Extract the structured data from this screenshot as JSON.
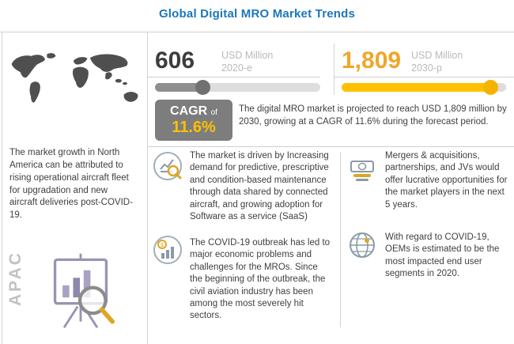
{
  "title": "Global Digital MRO Market Trends",
  "left_panel": {
    "text": "The market growth in North America can be attributed to rising operational aircraft fleet for upgradation and new aircraft deliveries post-COVID-19.",
    "region_label": "APAC"
  },
  "market_2020": {
    "value": "606",
    "unit": "USD Million",
    "period": "2020-e"
  },
  "market_2030": {
    "value": "1,809",
    "unit": "USD Million",
    "period": "2030-p"
  },
  "cagr": {
    "label": "CAGR",
    "connector": "of",
    "value": "11.6%"
  },
  "projection_text": "The digital MRO market is projected to reach USD 1,809 million by 2030, growing at a CAGR of 11.6% during the forecast period.",
  "insights": [
    {
      "icon": "chart-magnifier-icon",
      "text": "The market is driven by Increasing demand for predictive, prescriptive and condition-based maintenance through data shared by connected aircraft, and growing adoption for Software as a service (SaaS)"
    },
    {
      "icon": "growth-bars-dollar-icon",
      "text": "The COVID-19 outbreak has led to major economic problems and challenges for the MROs. Since the beginning of the outbreak, the civil aviation industry has been among the most severely hit sectors."
    },
    {
      "icon": "money-bills-icon",
      "text": "Mergers & acquisitions, partnerships, and JVs would offer lucrative opportunities for the market players in the next 5 years."
    },
    {
      "icon": "globe-icon",
      "text": "With regard to COVID-19, OEMs is estimated to be the most impacted end user segments in 2020."
    }
  ],
  "colors": {
    "accent_blue": "#1a78b8",
    "gold_bar": "#ffc000",
    "amber_value": "#f0a62a",
    "cagr_box_gray": "#7d7d7d",
    "gray_bar": "#8f8f8f"
  },
  "chart_data": {
    "type": "bar",
    "title": "Global Digital MRO Market Trends",
    "categories": [
      "2020-e",
      "2030-p"
    ],
    "values": [
      606,
      1809
    ],
    "unit": "USD Million",
    "cagr_percent": 11.6,
    "note": "Market projected to reach USD 1,809 million by 2030 at 11.6% CAGR"
  }
}
